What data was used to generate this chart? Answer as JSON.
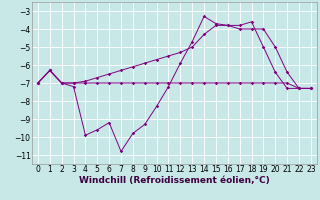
{
  "xlabel": "Windchill (Refroidissement éolien,°C)",
  "x": [
    0,
    1,
    2,
    3,
    4,
    5,
    6,
    7,
    8,
    9,
    10,
    11,
    12,
    13,
    14,
    15,
    16,
    17,
    18,
    19,
    20,
    21,
    22,
    23
  ],
  "line1": [
    -7.0,
    -6.3,
    -7.0,
    -7.2,
    -9.9,
    -9.6,
    -9.2,
    -10.8,
    -9.8,
    -9.3,
    -8.3,
    -7.2,
    -5.9,
    -4.7,
    -3.3,
    -3.7,
    -3.8,
    -3.8,
    -3.6,
    -5.0,
    -6.4,
    -7.3,
    -7.3,
    -7.3
  ],
  "line2": [
    -7.0,
    -6.3,
    -7.0,
    -7.0,
    -7.0,
    -7.0,
    -7.0,
    -7.0,
    -7.0,
    -7.0,
    -7.0,
    -7.0,
    -7.0,
    -7.0,
    -7.0,
    -7.0,
    -7.0,
    -7.0,
    -7.0,
    -7.0,
    -7.0,
    -7.0,
    -7.3,
    -7.3
  ],
  "line3": [
    -7.0,
    -6.3,
    -7.0,
    -7.0,
    -6.9,
    -6.7,
    -6.5,
    -6.3,
    -6.1,
    -5.9,
    -5.7,
    -5.5,
    -5.3,
    -5.0,
    -4.3,
    -3.8,
    -3.8,
    -4.0,
    -4.0,
    -4.0,
    -5.0,
    -6.4,
    -7.3,
    -7.3
  ],
  "bg_color": "#c8e8e8",
  "grid_color": "#ffffff",
  "line_color": "#800080",
  "marker": "D",
  "marker_size": 1.8,
  "ylim": [
    -11.5,
    -2.5
  ],
  "xlim": [
    -0.5,
    23.5
  ],
  "yticks": [
    -11,
    -10,
    -9,
    -8,
    -7,
    -6,
    -5,
    -4,
    -3
  ],
  "xticks": [
    0,
    1,
    2,
    3,
    4,
    5,
    6,
    7,
    8,
    9,
    10,
    11,
    12,
    13,
    14,
    15,
    16,
    17,
    18,
    19,
    20,
    21,
    22,
    23
  ],
  "tick_fontsize": 5.5,
  "xlabel_fontsize": 6.5,
  "lw": 0.7
}
